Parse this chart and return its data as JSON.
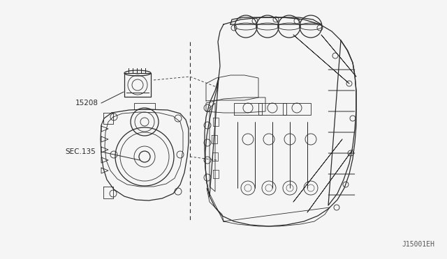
{
  "bg_color": "#f5f5f5",
  "line_color": "#2a2a2a",
  "label_15208": "15208",
  "label_sec135": "SEC.135",
  "label_code": "J15001EH",
  "fig_width": 6.4,
  "fig_height": 3.72,
  "dpi": 100
}
